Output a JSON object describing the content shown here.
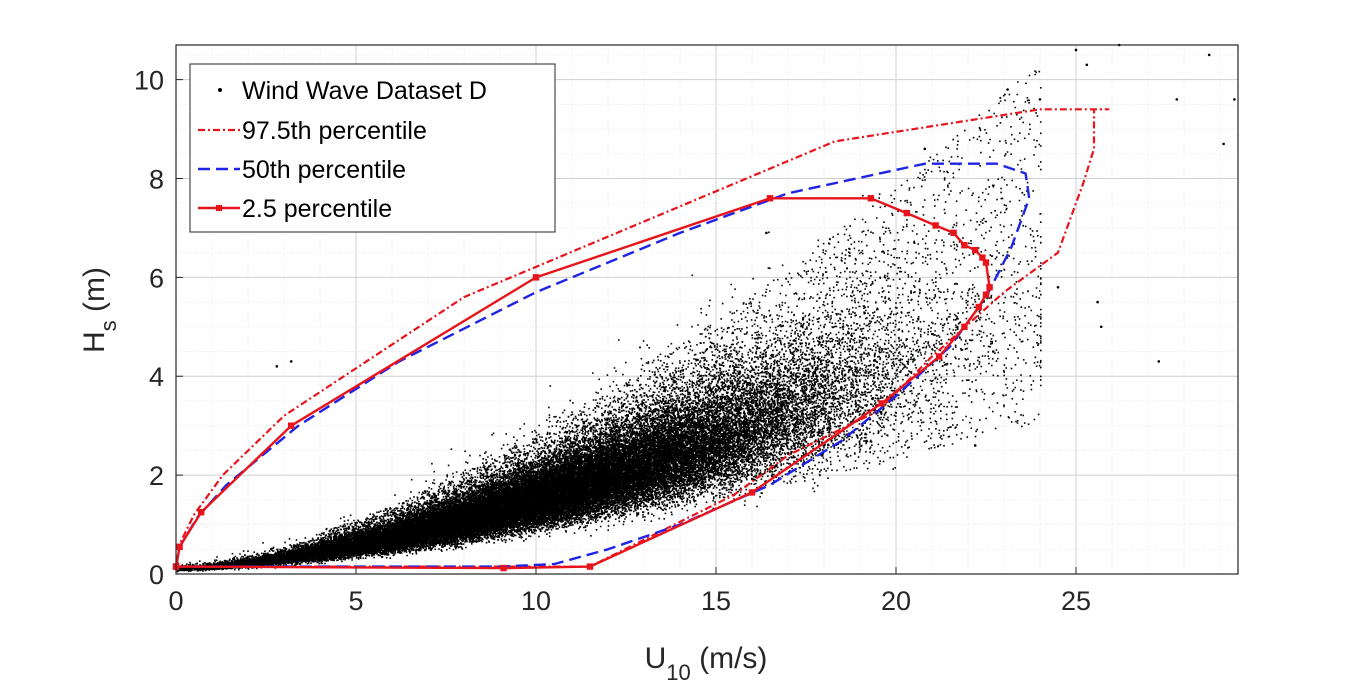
{
  "chart_data": {
    "type": "scatter",
    "xlabel": "U",
    "xlabel_sub": "10",
    "xlabel_unit": " (m/s)",
    "ylabel": "H",
    "ylabel_sub": "s",
    "ylabel_unit": " (m)",
    "xlim": [
      0,
      29.5
    ],
    "ylim": [
      0,
      10.7
    ],
    "xticks": [
      0,
      5,
      10,
      15,
      20,
      25
    ],
    "yticks": [
      0,
      2,
      4,
      6,
      8,
      10
    ],
    "grid": true,
    "minor_grid": true,
    "legend_position": "top-left",
    "series": [
      {
        "name": "Wind Wave Dataset D",
        "style": "dots",
        "color": "#000000",
        "description_points": "dense cloud of observations rising from origin; core band roughly H = 0.04*U^1.55 with growing spread",
        "outliers": [
          [
            28.7,
            10.5
          ],
          [
            29.4,
            9.6
          ],
          [
            26.2,
            10.7
          ],
          [
            25.0,
            10.6
          ],
          [
            27.8,
            9.6
          ],
          [
            29.1,
            8.7
          ],
          [
            25.6,
            5.5
          ],
          [
            25.7,
            5.0
          ],
          [
            27.3,
            4.3
          ],
          [
            22.2,
            2.6
          ],
          [
            24.5,
            5.8
          ],
          [
            22.7,
            4.5
          ],
          [
            3.2,
            4.3
          ],
          [
            2.8,
            4.2
          ],
          [
            16.4,
            6.9
          ],
          [
            20.8,
            8.6
          ],
          [
            23.1,
            9.8
          ],
          [
            24.0,
            9.6
          ],
          [
            25.3,
            10.3
          ]
        ]
      },
      {
        "name": "97.5th percentile",
        "style": "dashdot",
        "color": "#e8141b",
        "points": [
          [
            0.0,
            0.15
          ],
          [
            0.1,
            0.6
          ],
          [
            0.5,
            1.2
          ],
          [
            1.3,
            2.0
          ],
          [
            3.0,
            3.2
          ],
          [
            8.0,
            5.6
          ],
          [
            18.3,
            8.75
          ],
          [
            24.0,
            9.4
          ],
          [
            25.9,
            9.4
          ],
          [
            25.5,
            9.4
          ],
          [
            25.5,
            8.6
          ],
          [
            25.2,
            7.9
          ],
          [
            24.5,
            6.5
          ],
          [
            23.0,
            5.7
          ],
          [
            21.0,
            4.4
          ],
          [
            19.5,
            3.3
          ],
          [
            17.0,
            2.4
          ],
          [
            15.5,
            1.6
          ],
          [
            11.5,
            0.15
          ],
          [
            0.0,
            0.15
          ]
        ]
      },
      {
        "name": "50th percentile",
        "style": "dashed",
        "color": "#1f23e6",
        "points": [
          [
            0.0,
            0.15
          ],
          [
            0.1,
            0.55
          ],
          [
            0.6,
            1.15
          ],
          [
            1.4,
            1.8
          ],
          [
            3.4,
            3.0
          ],
          [
            6.2,
            4.3
          ],
          [
            10.0,
            5.7
          ],
          [
            14.0,
            6.9
          ],
          [
            17.0,
            7.7
          ],
          [
            20.8,
            8.3
          ],
          [
            22.8,
            8.3
          ],
          [
            23.6,
            8.1
          ],
          [
            23.7,
            7.6
          ],
          [
            23.2,
            6.6
          ],
          [
            22.5,
            5.6
          ],
          [
            21.5,
            4.6
          ],
          [
            20.0,
            3.6
          ],
          [
            18.5,
            2.7
          ],
          [
            16.5,
            1.8
          ],
          [
            14.0,
            1.0
          ],
          [
            12.0,
            0.5
          ],
          [
            10.5,
            0.2
          ],
          [
            9.0,
            0.15
          ],
          [
            0.0,
            0.15
          ]
        ]
      },
      {
        "name": "2.5 percentile",
        "style": "solid-markers",
        "color": "#e8141b",
        "points": [
          [
            0.0,
            0.15
          ],
          [
            0.1,
            0.55
          ],
          [
            0.7,
            1.25
          ],
          [
            3.2,
            3.0
          ],
          [
            10.0,
            6.0
          ],
          [
            16.5,
            7.6
          ],
          [
            19.3,
            7.6
          ],
          [
            20.3,
            7.3
          ],
          [
            21.1,
            7.05
          ],
          [
            21.6,
            6.9
          ],
          [
            21.9,
            6.65
          ],
          [
            22.2,
            6.55
          ],
          [
            22.4,
            6.4
          ],
          [
            22.5,
            6.3
          ],
          [
            22.6,
            5.8
          ],
          [
            22.5,
            5.65
          ],
          [
            22.3,
            5.4
          ],
          [
            21.9,
            5.0
          ],
          [
            21.2,
            4.4
          ],
          [
            19.6,
            3.45
          ],
          [
            16.0,
            1.65
          ],
          [
            11.5,
            0.15
          ],
          [
            9.1,
            0.12
          ],
          [
            0.0,
            0.15
          ]
        ]
      }
    ]
  }
}
